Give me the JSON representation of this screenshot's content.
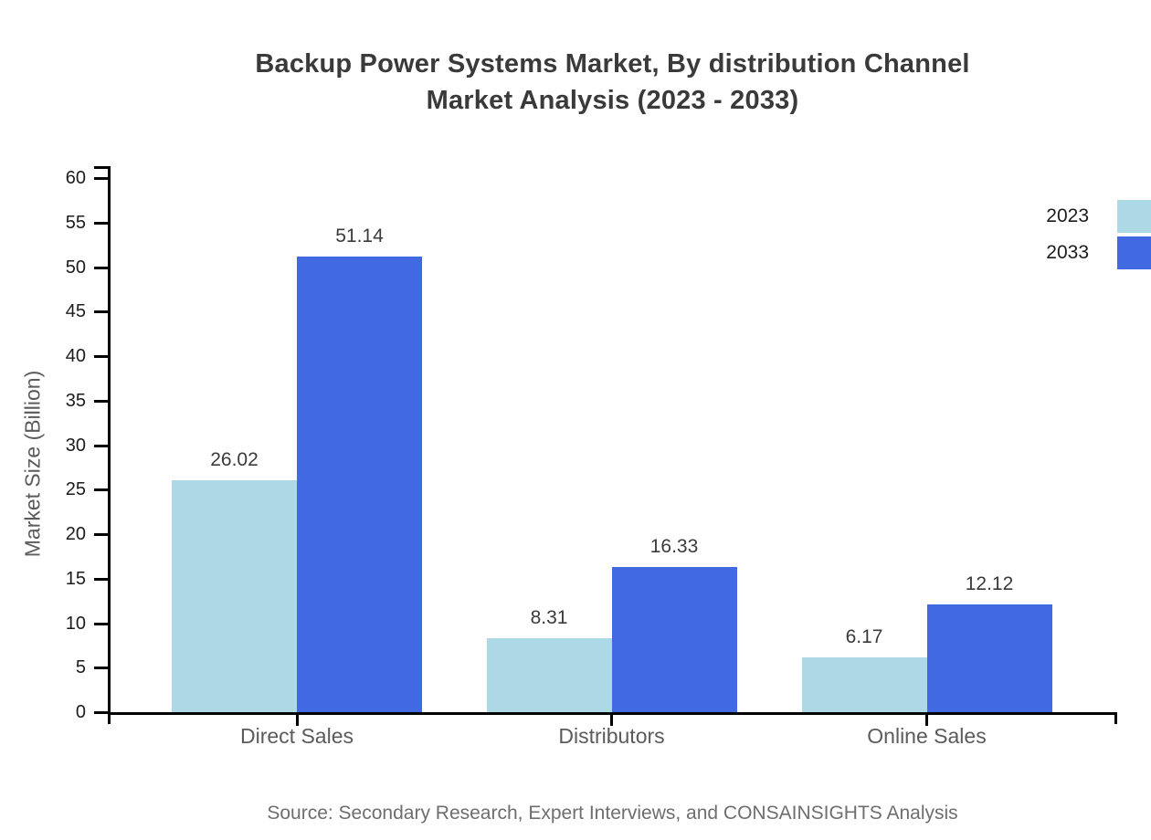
{
  "title": {
    "line1": "Backup Power Systems Market, By distribution Channel",
    "line2": "Market Analysis (2023 - 2033)"
  },
  "source": "Source: Secondary Research, Expert Interviews, and CONSAINSIGHTS Analysis",
  "colors": {
    "series_2023": "#ADD8E6",
    "series_2033": "#4169E1",
    "axis": "#000000",
    "title_text": "#3a3a3a",
    "muted_text": "#5b5b5b",
    "source_text": "#6e6e6e"
  },
  "chart_data": {
    "type": "bar",
    "title": "Backup Power Systems Market, By distribution Channel Market Analysis (2023 - 2033)",
    "categories": [
      "Direct Sales",
      "Distributors",
      "Online Sales"
    ],
    "series": [
      {
        "name": "2023",
        "color": "#ADD8E6",
        "values": [
          26.02,
          8.31,
          6.17
        ]
      },
      {
        "name": "2033",
        "color": "#4169E1",
        "values": [
          51.14,
          16.33,
          12.12
        ]
      }
    ],
    "xlabel": "",
    "ylabel": "Market Size (Billion)",
    "ylim": [
      0,
      60
    ],
    "ytick_step": 5,
    "grid": false,
    "legend_position": "right",
    "value_labels": true
  }
}
